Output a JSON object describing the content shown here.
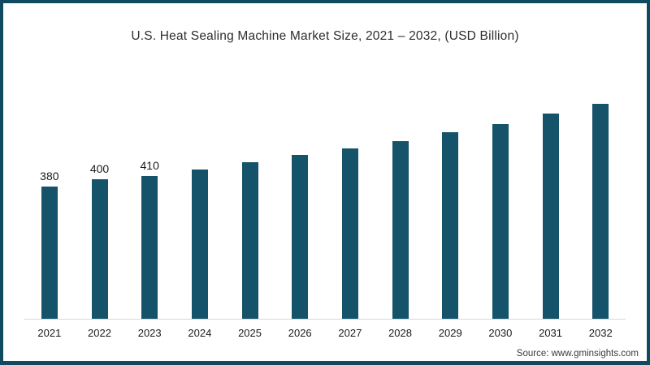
{
  "page": {
    "title": "U.S. Heat Sealing Machine Market Size, 2021 – 2032, (USD Billion)",
    "source_note": "Source: www.gminsights.com"
  },
  "colors": {
    "bar": "#14536a",
    "frame_border": "#0f4a5e",
    "axis_line": "#d9d9d9",
    "title_text": "#2d2d2d",
    "label_text": "#1a1a1a"
  },
  "chart_data": {
    "type": "bar",
    "title": "U.S. Heat Sealing Machine Market Size, 2021 – 2032, (USD Billion)",
    "xlabel": "",
    "ylabel": "USD Billion",
    "ylim": [
      0,
      650
    ],
    "grid": false,
    "legend": "none",
    "categories": [
      "2021",
      "2022",
      "2023",
      "2024",
      "2025",
      "2026",
      "2027",
      "2028",
      "2029",
      "2030",
      "2031",
      "2032"
    ],
    "values": [
      380,
      400,
      410,
      430,
      450,
      470,
      490,
      510,
      535,
      560,
      590,
      618
    ],
    "data_labels_shown": [
      "380",
      "400",
      "410",
      "",
      "",
      "",
      "",
      "",
      "",
      "",
      "",
      ""
    ],
    "source": "Source: www.gminsights.com"
  }
}
